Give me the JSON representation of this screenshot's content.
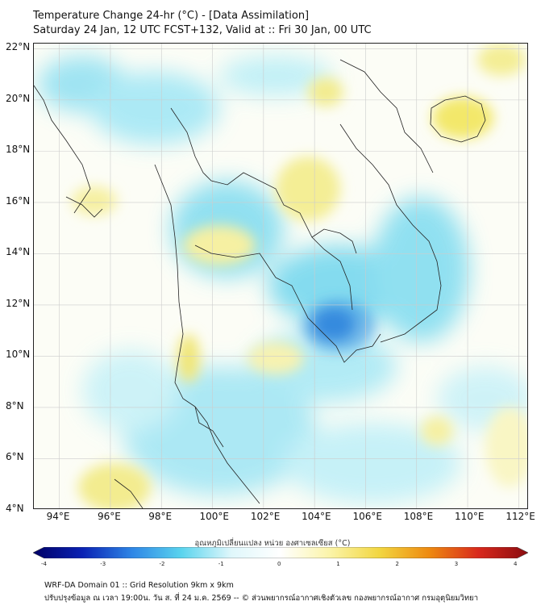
{
  "header": {
    "title_line1": "Temperature Change 24-hr (°C) - [Data Assimilation]",
    "title_line2": "Saturday 24 Jan, 12 UTC FCST+132, Valid at :: Fri 30 Jan, 00 UTC"
  },
  "map": {
    "lat_labels": [
      "22°N",
      "20°N",
      "18°N",
      "16°N",
      "14°N",
      "12°N",
      "10°N",
      "8°N",
      "6°N",
      "4°N"
    ],
    "lon_labels": [
      "94°E",
      "96°E",
      "98°E",
      "100°E",
      "102°E",
      "104°E",
      "106°E",
      "108°E",
      "110°E",
      "112°E"
    ],
    "lat_range": [
      4,
      22.2
    ],
    "lon_range": [
      93,
      112.4
    ],
    "colors": {
      "cool": "#5ad4ee",
      "cold": "#2a7ad8",
      "warm": "#f3ec8f",
      "neutral": "#fcfdf6",
      "border": "#222222"
    }
  },
  "colorbar": {
    "title": "อุณหภูมิเปลี่ยนแปลง หน่วย องศาเซลเซียส (°C)",
    "ticks": [
      "-4",
      "-3",
      "-2",
      "-1",
      "0",
      "1",
      "2",
      "3",
      "4"
    ],
    "range": [
      -4,
      4
    ],
    "colors": [
      "#000066",
      "#0a22b4",
      "#2e86e6",
      "#5ad4ee",
      "#dff7fb",
      "#ffffff",
      "#fbf4a8",
      "#f2d640",
      "#ee8a10",
      "#d8281c",
      "#8a0c10"
    ]
  },
  "footer": {
    "line1": "WRF-DA Domain 01 :: Grid Resolution 9km x 9km",
    "line2": "ปรับปรุงข้อมูล ณ เวลา 19:00น. วัน ส. ที่ 24 ม.ค. 2569 -- © ส่วนพยากรณ์อากาศเชิงตัวเลข กองพยากรณ์อากาศ กรมอุตุนิยมวิทยา"
  }
}
